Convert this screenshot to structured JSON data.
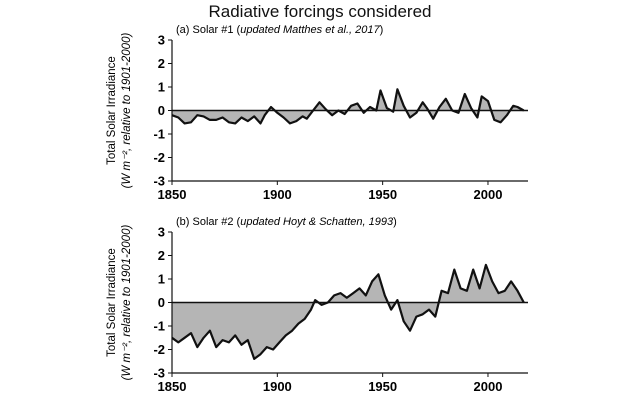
{
  "figure_title": "Radiative forcings considered",
  "colors": {
    "fill": "#b5b5b5",
    "line": "#111111",
    "baseline": "#111111"
  },
  "chart_data": [
    {
      "type": "area",
      "title": "(a) Solar #1 (",
      "title_italic": "updated Matthes et al., 2017",
      "title_suffix": ")",
      "ylabel_line1": "Total Solar Irradiance",
      "ylabel_line2": "(W m⁻², relative to 1901-2000)",
      "xlim": [
        1850,
        2019
      ],
      "ylim": [
        -3,
        3
      ],
      "xticks": [
        1850,
        1900,
        1950,
        2000
      ],
      "yticks": [
        3,
        2,
        1,
        0,
        -1,
        -2,
        -3
      ],
      "grid": false,
      "x": [
        1850,
        1853,
        1856,
        1859,
        1862,
        1865,
        1868,
        1871,
        1874,
        1877,
        1880,
        1883,
        1886,
        1889,
        1892,
        1894,
        1897,
        1900,
        1903,
        1906,
        1909,
        1912,
        1914,
        1917,
        1920,
        1923,
        1926,
        1929,
        1932,
        1935,
        1938,
        1941,
        1944,
        1947,
        1949,
        1952,
        1955,
        1957,
        1960,
        1963,
        1966,
        1969,
        1971,
        1974,
        1977,
        1980,
        1983,
        1986,
        1989,
        1992,
        1995,
        1997,
        2000,
        2003,
        2006,
        2009,
        2012,
        2014,
        2017
      ],
      "y": [
        -0.2,
        -0.3,
        -0.55,
        -0.5,
        -0.2,
        -0.25,
        -0.4,
        -0.4,
        -0.3,
        -0.5,
        -0.55,
        -0.3,
        -0.45,
        -0.25,
        -0.55,
        -0.2,
        0.15,
        -0.1,
        -0.3,
        -0.55,
        -0.45,
        -0.25,
        -0.35,
        0.0,
        0.35,
        0.05,
        -0.2,
        0.0,
        -0.15,
        0.2,
        0.3,
        -0.1,
        0.15,
        0.0,
        0.85,
        0.1,
        -0.05,
        0.9,
        0.2,
        -0.3,
        -0.1,
        0.35,
        0.1,
        -0.35,
        0.15,
        0.5,
        0.0,
        -0.1,
        0.7,
        0.1,
        -0.3,
        0.6,
        0.4,
        -0.4,
        -0.5,
        -0.2,
        0.2,
        0.15,
        0.0
      ]
    },
    {
      "type": "area",
      "title": "(b) Solar #2 (",
      "title_italic": "updated Hoyt & Schatten, 1993",
      "title_suffix": ")",
      "ylabel_line1": "Total Solar Irradiance",
      "ylabel_line2": "(W m⁻², relative to 1901-2000)",
      "xlim": [
        1850,
        2019
      ],
      "ylim": [
        -3,
        3
      ],
      "xticks": [
        1850,
        1900,
        1950,
        2000
      ],
      "yticks": [
        3,
        2,
        1,
        0,
        -1,
        -2,
        -3
      ],
      "grid": false,
      "x": [
        1850,
        1853,
        1856,
        1859,
        1862,
        1865,
        1868,
        1871,
        1874,
        1877,
        1880,
        1883,
        1886,
        1889,
        1892,
        1895,
        1898,
        1901,
        1904,
        1907,
        1910,
        1913,
        1916,
        1918,
        1921,
        1924,
        1927,
        1930,
        1933,
        1936,
        1939,
        1942,
        1945,
        1948,
        1951,
        1954,
        1957,
        1960,
        1963,
        1966,
        1969,
        1972,
        1975,
        1978,
        1981,
        1984,
        1987,
        1990,
        1993,
        1996,
        1999,
        2002,
        2005,
        2008,
        2011,
        2014,
        2017
      ],
      "y": [
        -1.5,
        -1.7,
        -1.5,
        -1.3,
        -1.9,
        -1.5,
        -1.2,
        -1.9,
        -1.6,
        -1.7,
        -1.4,
        -1.8,
        -1.6,
        -2.4,
        -2.2,
        -1.9,
        -2.0,
        -1.7,
        -1.4,
        -1.2,
        -0.9,
        -0.7,
        -0.3,
        0.1,
        -0.1,
        0.0,
        0.3,
        0.4,
        0.2,
        0.4,
        0.6,
        0.3,
        0.9,
        1.2,
        0.3,
        -0.3,
        0.1,
        -0.8,
        -1.2,
        -0.6,
        -0.5,
        -0.3,
        -0.6,
        0.5,
        0.4,
        1.4,
        0.6,
        0.5,
        1.4,
        0.6,
        1.6,
        0.9,
        0.4,
        0.5,
        0.9,
        0.5,
        0.0
      ]
    }
  ]
}
